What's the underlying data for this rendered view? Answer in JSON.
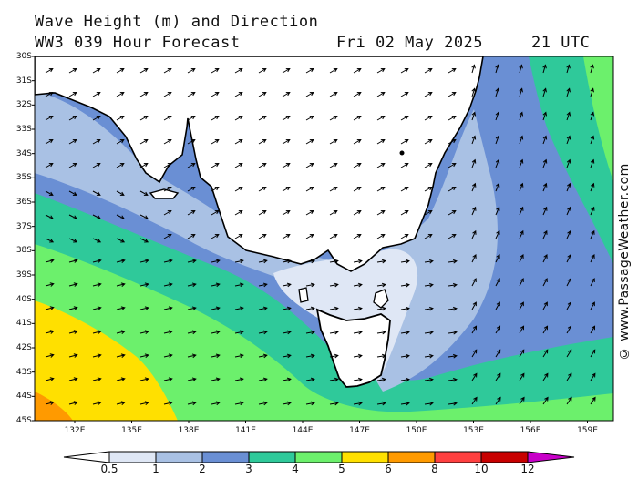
{
  "header": {
    "title": "Wave Height (m) and Direction",
    "model_run": "WW3 039 Hour Forecast",
    "date": "Fri 02 May 2025",
    "time": "21 UTC"
  },
  "credit": "© www.PassageWeather.com",
  "map": {
    "lat_labels": [
      "30S",
      "31S",
      "32S",
      "33S",
      "34S",
      "35S",
      "36S",
      "37S",
      "38S",
      "39S",
      "40S",
      "41S",
      "42S",
      "43S",
      "44S",
      "45S"
    ],
    "lon_labels": [
      "132E",
      "135E",
      "138E",
      "141E",
      "144E",
      "147E",
      "150E",
      "153E",
      "156E",
      "159E"
    ],
    "land_color": "#ffffff",
    "coast_color": "#000000"
  },
  "legend": {
    "labels": [
      "0.5",
      "1",
      "2",
      "3",
      "4",
      "5",
      "6",
      "8",
      "10",
      "12"
    ],
    "colors": [
      "#dfe7f5",
      "#a9c1e4",
      "#6a8fd4",
      "#2fc99a",
      "#6cf06c",
      "#ffe000",
      "#ff9a00",
      "#ff4040",
      "#c80000",
      "#c800c8"
    ]
  }
}
